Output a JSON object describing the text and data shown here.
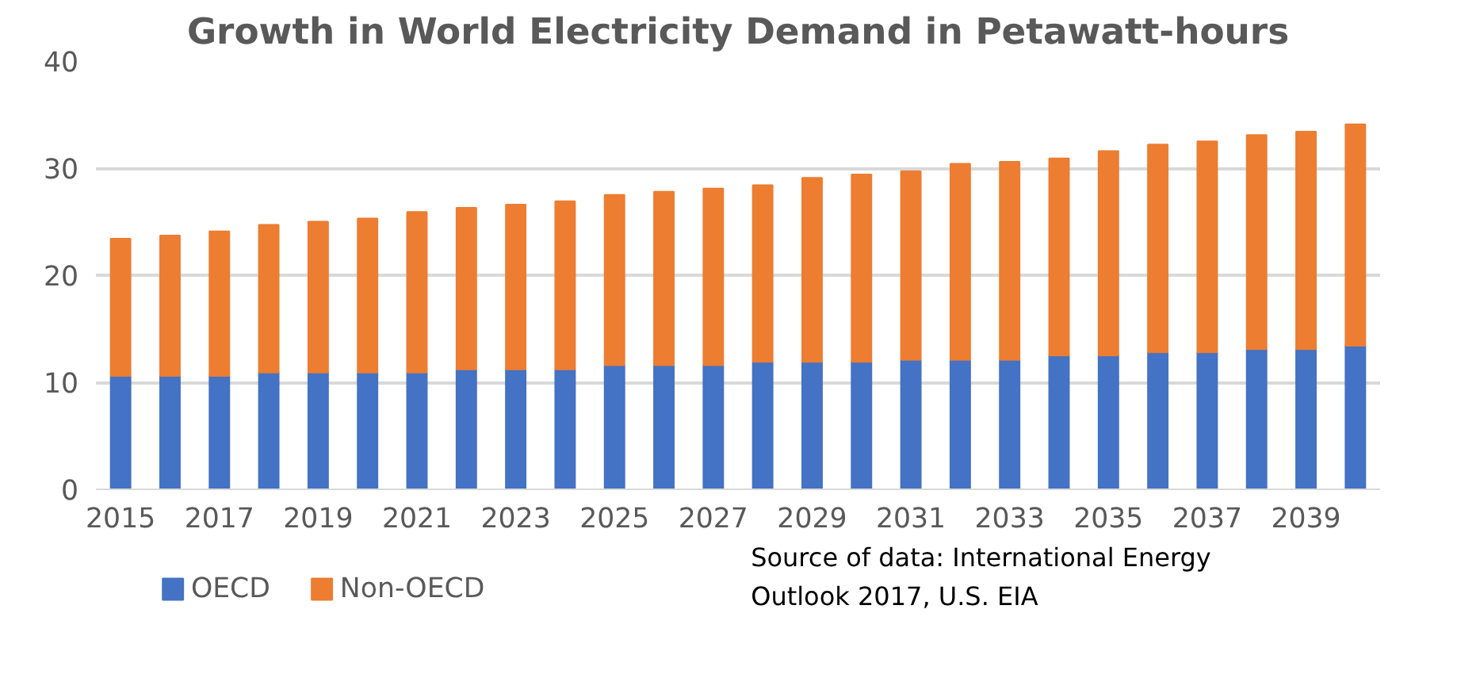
{
  "chart_data": {
    "type": "bar",
    "stacked": true,
    "title": "Growth in World Electricity Demand in Petawatt-hours",
    "categories": [
      "2015",
      null,
      "2017",
      null,
      "2019",
      null,
      "2021",
      null,
      "2023",
      null,
      "2025",
      null,
      "2027",
      null,
      "2029",
      null,
      "2031",
      null,
      "2033",
      null,
      "2035",
      null,
      "2037",
      null,
      "2039",
      null
    ],
    "series": [
      {
        "name": "OECD",
        "color": "#4472c4",
        "values": [
          10.6,
          10.6,
          10.6,
          10.9,
          10.9,
          10.9,
          10.9,
          11.2,
          11.2,
          11.2,
          11.6,
          11.6,
          11.6,
          11.9,
          11.9,
          11.9,
          12.1,
          12.1,
          12.1,
          12.5,
          12.5,
          12.8,
          12.8,
          13.1,
          13.1,
          13.4
        ]
      },
      {
        "name": "Non-OECD",
        "color": "#ed7d31",
        "values": [
          12.8,
          13.1,
          13.5,
          13.8,
          14.1,
          14.4,
          15.0,
          15.1,
          15.4,
          15.7,
          15.9,
          16.2,
          16.5,
          16.5,
          17.2,
          17.5,
          17.6,
          18.3,
          18.5,
          18.4,
          19.1,
          19.4,
          19.7,
          20.0,
          20.3,
          20.7
        ]
      }
    ],
    "ylim": [
      0,
      40
    ],
    "yticks": [
      0,
      10,
      20,
      30,
      40
    ],
    "grid": "y",
    "legend": "bottom",
    "annotations": [
      "Source of data: International Energy Outlook 2017, U.S.  EIA"
    ]
  }
}
